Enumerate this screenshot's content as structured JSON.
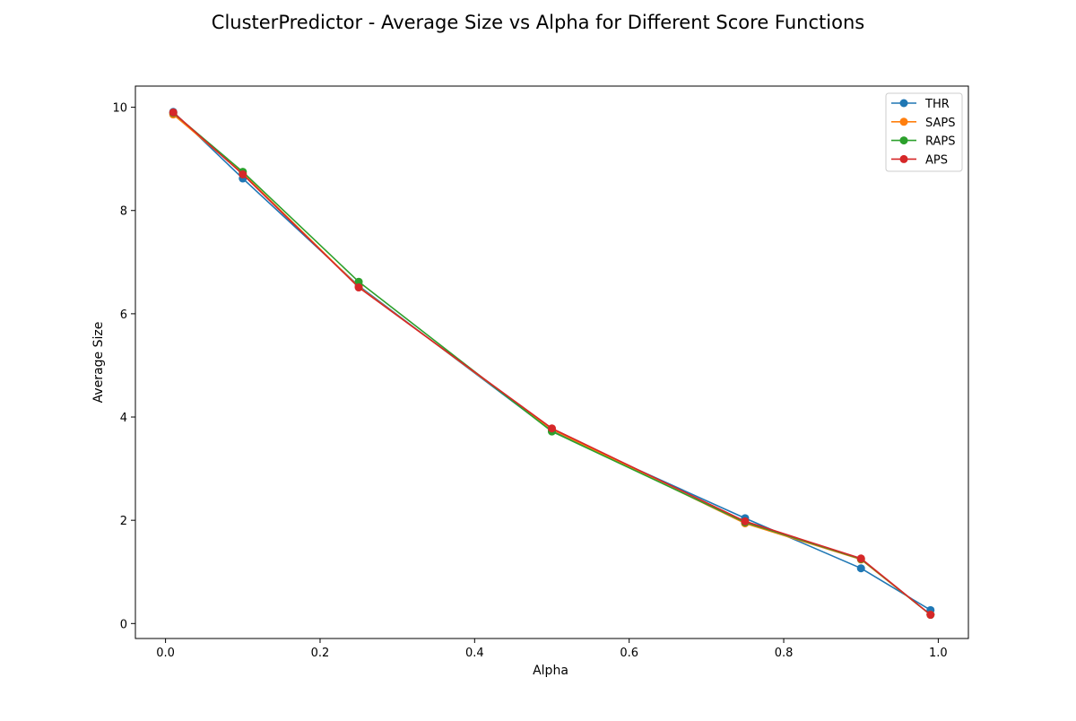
{
  "chart_data": {
    "type": "line",
    "title": "ClusterPredictor - Average Size vs Alpha for Different Score Functions",
    "xlabel": "Alpha",
    "ylabel": "Average Size",
    "x": [
      0.01,
      0.1,
      0.25,
      0.5,
      0.75,
      0.9,
      0.99
    ],
    "xlim": [
      -0.039,
      1.039
    ],
    "ylim": [
      -0.29,
      10.41
    ],
    "xticks": [
      0.0,
      0.2,
      0.4,
      0.6,
      0.8,
      1.0
    ],
    "xtick_labels": [
      "0.0",
      "0.2",
      "0.4",
      "0.6",
      "0.8",
      "1.0"
    ],
    "yticks": [
      0,
      2,
      4,
      6,
      8,
      10
    ],
    "ytick_labels": [
      "0",
      "2",
      "4",
      "6",
      "8",
      "10"
    ],
    "grid": false,
    "legend_position": "top-right",
    "series": [
      {
        "name": "THR",
        "color": "#1f77b4",
        "values": [
          9.91,
          8.62,
          6.54,
          3.73,
          2.04,
          1.07,
          0.26
        ]
      },
      {
        "name": "SAPS",
        "color": "#ff7f0e",
        "values": [
          9.86,
          8.72,
          6.52,
          3.76,
          1.94,
          1.24,
          0.17
        ]
      },
      {
        "name": "RAPS",
        "color": "#2ca02c",
        "values": [
          9.89,
          8.75,
          6.62,
          3.72,
          1.96,
          1.25,
          0.17
        ]
      },
      {
        "name": "APS",
        "color": "#d62728",
        "values": [
          9.9,
          8.7,
          6.51,
          3.78,
          1.98,
          1.26,
          0.17
        ]
      }
    ]
  }
}
